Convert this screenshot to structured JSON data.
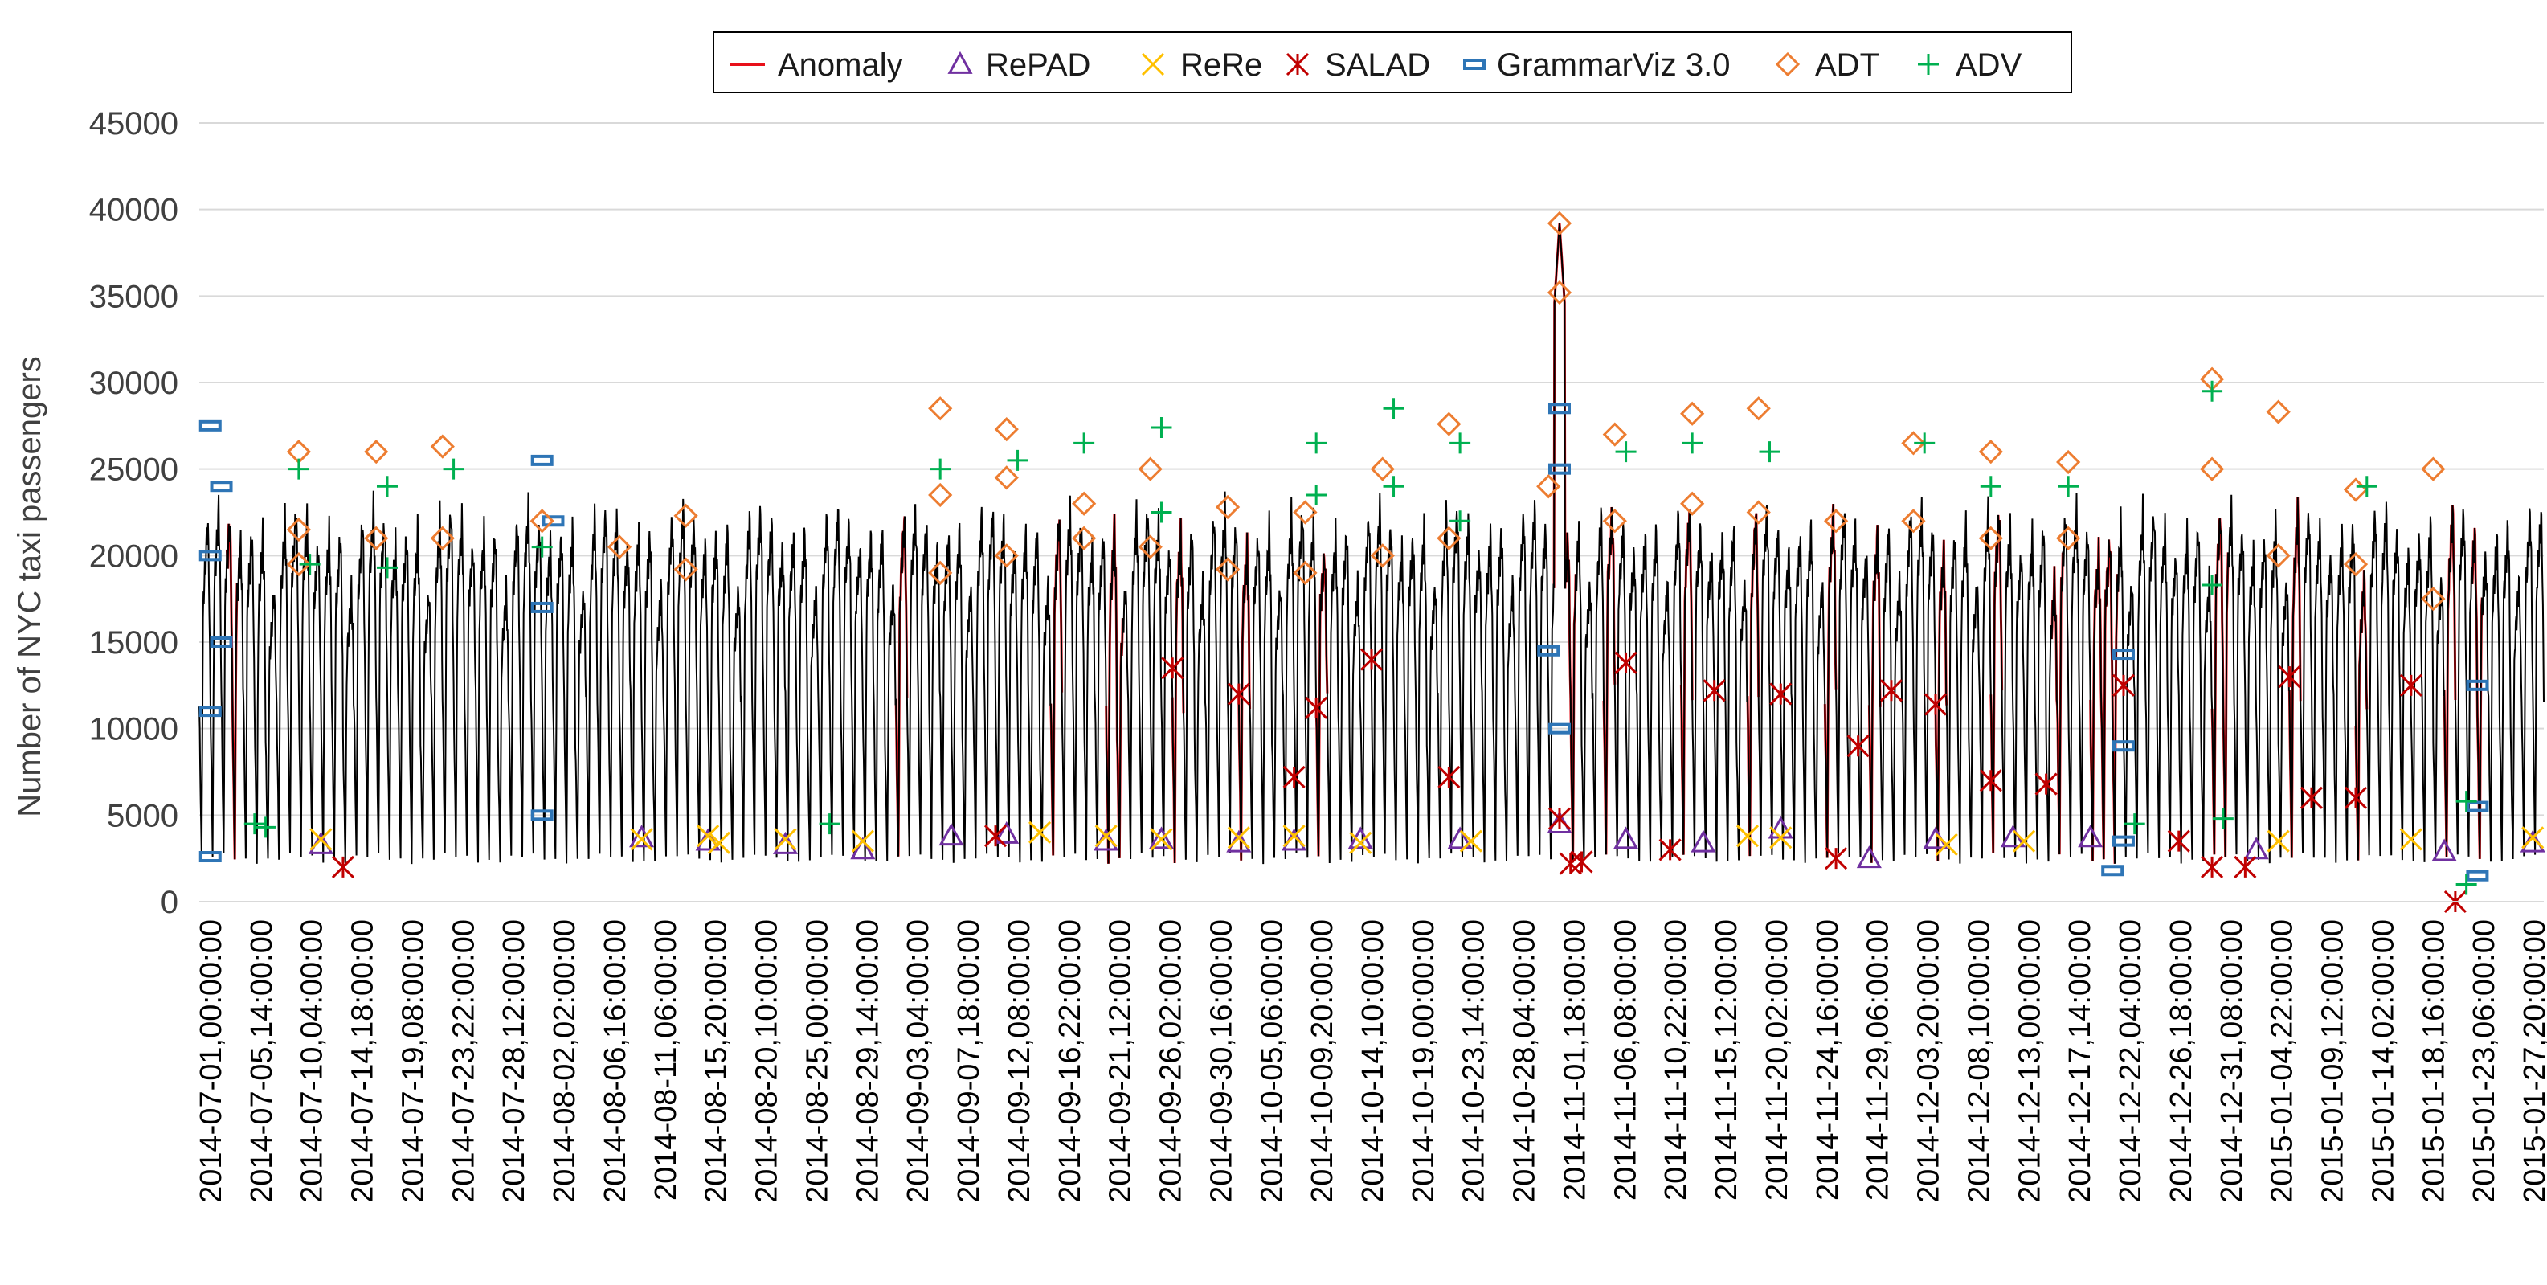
{
  "chart_data": {
    "type": "line",
    "title": "",
    "xlabel": "",
    "ylabel": "Number of NYC taxi passengers",
    "ylim": [
      0,
      45000
    ],
    "yticks": [
      0,
      5000,
      10000,
      15000,
      20000,
      25000,
      30000,
      35000,
      40000,
      45000
    ],
    "grid": true,
    "legend_position": "top-center",
    "x_tick_labels": [
      "2014-07-01,00:00:00",
      "2014-07-05,14:00:00",
      "2014-07-10,04:00:00",
      "2014-07-14,18:00:00",
      "2014-07-19,08:00:00",
      "2014-07-23,22:00:00",
      "2014-07-28,12:00:00",
      "2014-08-02,02:00:00",
      "2014-08-06,16:00:00",
      "2014-08-11,06:00:00",
      "2014-08-15,20:00:00",
      "2014-08-20,10:00:00",
      "2014-08-25,00:00:00",
      "2014-08-29,14:00:00",
      "2014-09-03,04:00:00",
      "2014-09-07,18:00:00",
      "2014-09-12,08:00:00",
      "2014-09-16,22:00:00",
      "2014-09-21,12:00:00",
      "2014-09-26,02:00:00",
      "2014-09-30,16:00:00",
      "2014-10-05,06:00:00",
      "2014-10-09,20:00:00",
      "2014-10-14,10:00:00",
      "2014-10-19,00:00:00",
      "2014-10-23,14:00:00",
      "2014-10-28,04:00:00",
      "2014-11-01,18:00:00",
      "2014-11-06,08:00:00",
      "2014-11-10,22:00:00",
      "2014-11-15,12:00:00",
      "2014-11-20,02:00:00",
      "2014-11-24,16:00:00",
      "2014-11-29,06:00:00",
      "2014-12-03,20:00:00",
      "2014-12-08,10:00:00",
      "2014-12-13,00:00:00",
      "2014-12-17,14:00:00",
      "2014-12-22,04:00:00",
      "2014-12-26,18:00:00",
      "2014-12-31,08:00:00",
      "2015-01-04,22:00:00",
      "2015-01-09,12:00:00",
      "2015-01-14,02:00:00",
      "2015-01-18,16:00:00",
      "2015-01-23,06:00:00",
      "2015-01-27,20:00:00"
    ],
    "x_range_days": [
      0,
      212
    ],
    "series_line": {
      "name": "NYC taxi passengers",
      "color": "#000000",
      "sampling": "hourly",
      "typical_daily_min": 2500,
      "typical_daily_max": 22000,
      "peak_value": 39200,
      "peak_day": 123
    },
    "legend": [
      {
        "name": "Anomaly",
        "marker": "line",
        "color": "#e8101a"
      },
      {
        "name": "RePAD",
        "marker": "triangle",
        "color": "#7030a0"
      },
      {
        "name": "ReRe",
        "marker": "x",
        "color": "#ffc000"
      },
      {
        "name": "SALAD",
        "marker": "star",
        "color": "#c00000"
      },
      {
        "name": "GrammarViz 3.0",
        "marker": "dash",
        "color": "#2e75b6"
      },
      {
        "name": "ADT",
        "marker": "diamond",
        "color": "#ed7d31"
      },
      {
        "name": "ADV",
        "marker": "plus",
        "color": "#00b050"
      }
    ],
    "anomaly_windows_days": [
      [
        2.5,
        3.5
      ],
      [
        63,
        64
      ],
      [
        77,
        78
      ],
      [
        82,
        83.5
      ],
      [
        88,
        89
      ],
      [
        94,
        95
      ],
      [
        101,
        102
      ],
      [
        122.5,
        124.5
      ],
      [
        127,
        128
      ],
      [
        134,
        135
      ],
      [
        140,
        141
      ],
      [
        147,
        148
      ],
      [
        151,
        152
      ],
      [
        157,
        158
      ],
      [
        162,
        163
      ],
      [
        167.5,
        168.5
      ],
      [
        171,
        173.5
      ],
      [
        182,
        183.5
      ],
      [
        189,
        190
      ],
      [
        195,
        196
      ],
      [
        203,
        204
      ],
      [
        205.5,
        206.5
      ]
    ],
    "detections": {
      "RePAD": [
        {
          "x": 11,
          "y": 3300
        },
        {
          "x": 40,
          "y": 3700
        },
        {
          "x": 46,
          "y": 3500
        },
        {
          "x": 53,
          "y": 3300
        },
        {
          "x": 60,
          "y": 3000
        },
        {
          "x": 68,
          "y": 3800
        },
        {
          "x": 73,
          "y": 3900
        },
        {
          "x": 82,
          "y": 3500
        },
        {
          "x": 87,
          "y": 3600
        },
        {
          "x": 94,
          "y": 3400
        },
        {
          "x": 99,
          "y": 3500
        },
        {
          "x": 105,
          "y": 3600
        },
        {
          "x": 114,
          "y": 3600
        },
        {
          "x": 123,
          "y": 4500
        },
        {
          "x": 129,
          "y": 3600
        },
        {
          "x": 136,
          "y": 3400
        },
        {
          "x": 143,
          "y": 4200
        },
        {
          "x": 151,
          "y": 2500
        },
        {
          "x": 157,
          "y": 3600
        },
        {
          "x": 164,
          "y": 3700
        },
        {
          "x": 171,
          "y": 3700
        },
        {
          "x": 186,
          "y": 3000
        },
        {
          "x": 203,
          "y": 2900
        },
        {
          "x": 211,
          "y": 3400
        }
      ],
      "ReRe": [
        {
          "x": 11,
          "y": 3600
        },
        {
          "x": 40,
          "y": 3600
        },
        {
          "x": 46,
          "y": 3800
        },
        {
          "x": 47,
          "y": 3400
        },
        {
          "x": 53,
          "y": 3600
        },
        {
          "x": 60,
          "y": 3500
        },
        {
          "x": 76,
          "y": 4000
        },
        {
          "x": 82,
          "y": 3800
        },
        {
          "x": 87,
          "y": 3600
        },
        {
          "x": 94,
          "y": 3700
        },
        {
          "x": 99,
          "y": 3800
        },
        {
          "x": 105,
          "y": 3400
        },
        {
          "x": 115,
          "y": 3500
        },
        {
          "x": 140,
          "y": 3800
        },
        {
          "x": 143,
          "y": 3700
        },
        {
          "x": 158,
          "y": 3300
        },
        {
          "x": 165,
          "y": 3500
        },
        {
          "x": 188,
          "y": 3500
        },
        {
          "x": 200,
          "y": 3600
        },
        {
          "x": 211,
          "y": 3700
        }
      ],
      "SALAD": [
        {
          "x": 13,
          "y": 2000
        },
        {
          "x": 72,
          "y": 3800
        },
        {
          "x": 88,
          "y": 13500
        },
        {
          "x": 94,
          "y": 12000
        },
        {
          "x": 99,
          "y": 7200
        },
        {
          "x": 101,
          "y": 11200
        },
        {
          "x": 106,
          "y": 14000
        },
        {
          "x": 113,
          "y": 7200
        },
        {
          "x": 123,
          "y": 4800
        },
        {
          "x": 124,
          "y": 2200
        },
        {
          "x": 125,
          "y": 2300
        },
        {
          "x": 129,
          "y": 13800
        },
        {
          "x": 133,
          "y": 3000
        },
        {
          "x": 137,
          "y": 12200
        },
        {
          "x": 143,
          "y": 12000
        },
        {
          "x": 148,
          "y": 2500
        },
        {
          "x": 150,
          "y": 9000
        },
        {
          "x": 153,
          "y": 12200
        },
        {
          "x": 157,
          "y": 11400
        },
        {
          "x": 162,
          "y": 7000
        },
        {
          "x": 167,
          "y": 6800
        },
        {
          "x": 174,
          "y": 12500
        },
        {
          "x": 179,
          "y": 3500
        },
        {
          "x": 182,
          "y": 2000
        },
        {
          "x": 185,
          "y": 2000
        },
        {
          "x": 189,
          "y": 13000
        },
        {
          "x": 191,
          "y": 6000
        },
        {
          "x": 195,
          "y": 6000
        },
        {
          "x": 200,
          "y": 12500
        },
        {
          "x": 204,
          "y": 0
        }
      ],
      "GrammarViz 3.0": [
        {
          "x": 1,
          "y": 27500
        },
        {
          "x": 1,
          "y": 20000
        },
        {
          "x": 1,
          "y": 11000
        },
        {
          "x": 1,
          "y": 2600
        },
        {
          "x": 2,
          "y": 24000
        },
        {
          "x": 2,
          "y": 15000
        },
        {
          "x": 31,
          "y": 25500
        },
        {
          "x": 31,
          "y": 17000
        },
        {
          "x": 31,
          "y": 5000
        },
        {
          "x": 32,
          "y": 22000
        },
        {
          "x": 123,
          "y": 28500
        },
        {
          "x": 123,
          "y": 25000
        },
        {
          "x": 123,
          "y": 10000
        },
        {
          "x": 122,
          "y": 14500
        },
        {
          "x": 174,
          "y": 14300
        },
        {
          "x": 174,
          "y": 9000
        },
        {
          "x": 174,
          "y": 3500
        },
        {
          "x": 173,
          "y": 1800
        },
        {
          "x": 206,
          "y": 12500
        },
        {
          "x": 206,
          "y": 5500
        },
        {
          "x": 206,
          "y": 1500
        }
      ],
      "ADT": [
        {
          "x": 9,
          "y": 26000
        },
        {
          "x": 9,
          "y": 21500
        },
        {
          "x": 9,
          "y": 19500
        },
        {
          "x": 16,
          "y": 26000
        },
        {
          "x": 16,
          "y": 21000
        },
        {
          "x": 22,
          "y": 26300
        },
        {
          "x": 22,
          "y": 21000
        },
        {
          "x": 31,
          "y": 22000
        },
        {
          "x": 38,
          "y": 20500
        },
        {
          "x": 44,
          "y": 22300
        },
        {
          "x": 44,
          "y": 19200
        },
        {
          "x": 67,
          "y": 28500
        },
        {
          "x": 67,
          "y": 23500
        },
        {
          "x": 67,
          "y": 19000
        },
        {
          "x": 73,
          "y": 27300
        },
        {
          "x": 73,
          "y": 24500
        },
        {
          "x": 73,
          "y": 20000
        },
        {
          "x": 80,
          "y": 23000
        },
        {
          "x": 80,
          "y": 21000
        },
        {
          "x": 86,
          "y": 25000
        },
        {
          "x": 86,
          "y": 20500
        },
        {
          "x": 93,
          "y": 22800
        },
        {
          "x": 93,
          "y": 19200
        },
        {
          "x": 100,
          "y": 22500
        },
        {
          "x": 100,
          "y": 19000
        },
        {
          "x": 107,
          "y": 25000
        },
        {
          "x": 107,
          "y": 20000
        },
        {
          "x": 113,
          "y": 27600
        },
        {
          "x": 113,
          "y": 21000
        },
        {
          "x": 123,
          "y": 39200
        },
        {
          "x": 123,
          "y": 35200
        },
        {
          "x": 122,
          "y": 24000
        },
        {
          "x": 128,
          "y": 27000
        },
        {
          "x": 128,
          "y": 22000
        },
        {
          "x": 135,
          "y": 28200
        },
        {
          "x": 135,
          "y": 23000
        },
        {
          "x": 141,
          "y": 28500
        },
        {
          "x": 141,
          "y": 22500
        },
        {
          "x": 148,
          "y": 22000
        },
        {
          "x": 155,
          "y": 26500
        },
        {
          "x": 155,
          "y": 22000
        },
        {
          "x": 162,
          "y": 26000
        },
        {
          "x": 162,
          "y": 21000
        },
        {
          "x": 169,
          "y": 25400
        },
        {
          "x": 169,
          "y": 21000
        },
        {
          "x": 182,
          "y": 30200
        },
        {
          "x": 182,
          "y": 25000
        },
        {
          "x": 188,
          "y": 28300
        },
        {
          "x": 188,
          "y": 20000
        },
        {
          "x": 195,
          "y": 23800
        },
        {
          "x": 195,
          "y": 19500
        },
        {
          "x": 202,
          "y": 25000
        },
        {
          "x": 202,
          "y": 17500
        }
      ],
      "ADV": [
        {
          "x": 5,
          "y": 4500
        },
        {
          "x": 6,
          "y": 4300
        },
        {
          "x": 9,
          "y": 25000
        },
        {
          "x": 10,
          "y": 19500
        },
        {
          "x": 17,
          "y": 24000
        },
        {
          "x": 17,
          "y": 19300
        },
        {
          "x": 23,
          "y": 25000
        },
        {
          "x": 31,
          "y": 20500
        },
        {
          "x": 57,
          "y": 4500
        },
        {
          "x": 67,
          "y": 25000
        },
        {
          "x": 74,
          "y": 25500
        },
        {
          "x": 80,
          "y": 26500
        },
        {
          "x": 87,
          "y": 27400
        },
        {
          "x": 87,
          "y": 22500
        },
        {
          "x": 101,
          "y": 26500
        },
        {
          "x": 101,
          "y": 23500
        },
        {
          "x": 108,
          "y": 28500
        },
        {
          "x": 108,
          "y": 24000
        },
        {
          "x": 114,
          "y": 26500
        },
        {
          "x": 114,
          "y": 22000
        },
        {
          "x": 129,
          "y": 26000
        },
        {
          "x": 135,
          "y": 26500
        },
        {
          "x": 142,
          "y": 26000
        },
        {
          "x": 156,
          "y": 26500
        },
        {
          "x": 162,
          "y": 24000
        },
        {
          "x": 169,
          "y": 24000
        },
        {
          "x": 175,
          "y": 4500
        },
        {
          "x": 182,
          "y": 29500
        },
        {
          "x": 182,
          "y": 18300
        },
        {
          "x": 183,
          "y": 4800
        },
        {
          "x": 196,
          "y": 24000
        },
        {
          "x": 205,
          "y": 5800
        },
        {
          "x": 205,
          "y": 1000
        }
      ]
    }
  }
}
